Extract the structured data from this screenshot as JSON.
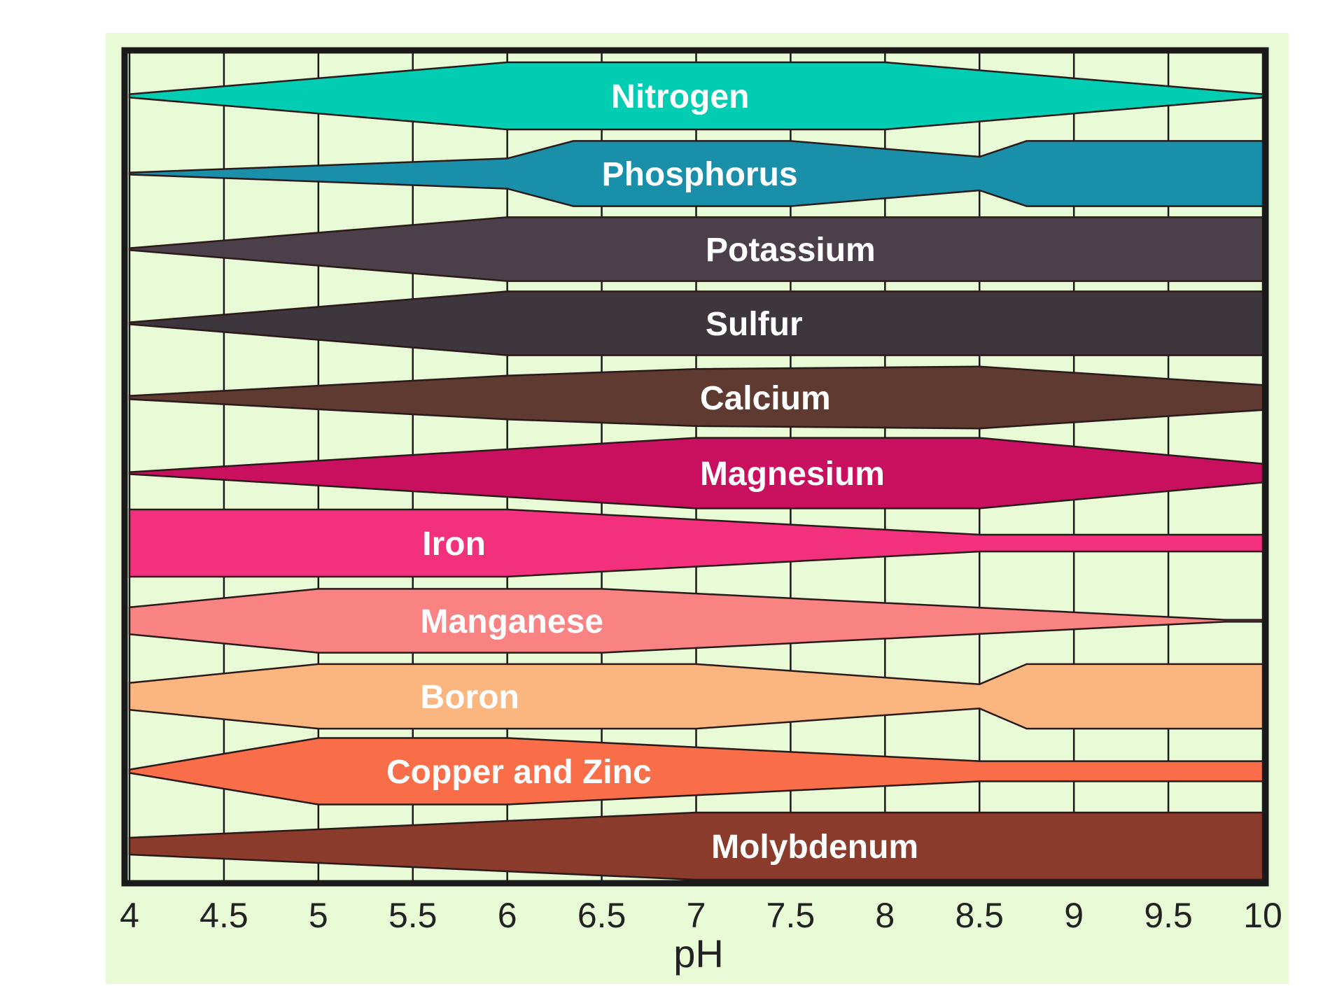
{
  "chart_data": {
    "type": "area",
    "title": "",
    "xlabel": "pH",
    "ylabel": "",
    "xlim": [
      4,
      10
    ],
    "x_ticks": [
      "4",
      "4.5",
      "5",
      "5.5",
      "6",
      "6.5",
      "7",
      "7.5",
      "8",
      "8.5",
      "9",
      "9.5",
      "10"
    ],
    "grid": true,
    "background_color": "#e8fbd6",
    "series": [
      {
        "name": "Nitrogen",
        "color": "#00cdb2",
        "availability": [
          [
            4,
            0.05
          ],
          [
            6,
            1
          ],
          [
            8,
            1
          ],
          [
            10,
            0.05
          ]
        ]
      },
      {
        "name": "Phosphorus",
        "color": "#1a8faa",
        "availability": [
          [
            4,
            0.03
          ],
          [
            6,
            0.45
          ],
          [
            6.35,
            0.97
          ],
          [
            7.5,
            0.97
          ],
          [
            8.5,
            0.5
          ],
          [
            8.75,
            0.97
          ],
          [
            10,
            0.97
          ]
        ]
      },
      {
        "name": "Potassium",
        "color": "#4b4049",
        "availability": [
          [
            4,
            0.03
          ],
          [
            6,
            0.95
          ],
          [
            10,
            0.95
          ]
        ]
      },
      {
        "name": "Sulfur",
        "color": "#3d373d",
        "availability": [
          [
            4,
            0.03
          ],
          [
            6,
            0.95
          ],
          [
            10,
            0.95
          ]
        ]
      },
      {
        "name": "Calcium",
        "color": "#5e3a30",
        "availability": [
          [
            4,
            0.05
          ],
          [
            6,
            0.65
          ],
          [
            7,
            0.85
          ],
          [
            8.5,
            0.92
          ],
          [
            10,
            0.37
          ]
        ]
      },
      {
        "name": "Magnesium",
        "color": "#c9105f",
        "availability": [
          [
            4,
            0.03
          ],
          [
            7,
            1.05
          ],
          [
            8.5,
            1.05
          ],
          [
            10,
            0.28
          ]
        ]
      },
      {
        "name": "Iron",
        "color": "#f2307c",
        "availability": [
          [
            4,
            1
          ],
          [
            6,
            1
          ],
          [
            8.5,
            0.25
          ],
          [
            10,
            0.25
          ]
        ]
      },
      {
        "name": "Manganese",
        "color": "#f98282",
        "availability": [
          [
            4,
            0.4
          ],
          [
            5,
            0.95
          ],
          [
            6.5,
            0.95
          ],
          [
            9.8,
            0.03
          ],
          [
            10,
            0.03
          ]
        ]
      },
      {
        "name": "Boron",
        "color": "#fbb680",
        "availability": [
          [
            4,
            0.4
          ],
          [
            5,
            0.96
          ],
          [
            7,
            0.96
          ],
          [
            8.5,
            0.36
          ],
          [
            8.75,
            0.96
          ],
          [
            10,
            0.96
          ]
        ]
      },
      {
        "name": "Copper and Zinc",
        "color": "#f96e48",
        "availability": [
          [
            4,
            0.05
          ],
          [
            5,
            0.99
          ],
          [
            6,
            0.99
          ],
          [
            8.5,
            0.3
          ],
          [
            10,
            0.3
          ]
        ]
      },
      {
        "name": "Molybdenum",
        "color": "#8b3b2b",
        "availability": [
          [
            4,
            0.25
          ],
          [
            7,
            1
          ],
          [
            10,
            1
          ]
        ]
      }
    ]
  }
}
